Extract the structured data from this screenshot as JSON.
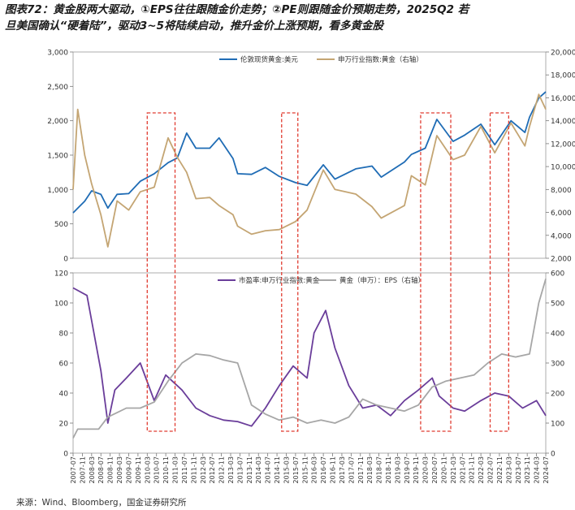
{
  "title_line1": "图表72：黄金股两大驱动，①EPS往往跟随金价走势；②PE则跟随金价预期走势，2025Q2 若",
  "title_line2": "旦美国确认“硬着陆”，驱动3~5将陆续启动，推升金价上涨预期，看多黄金股",
  "source": "来源：Wind、Bloomberg，国金证券研究所",
  "colors": {
    "gold_price": "#1f6cb5",
    "index": "#c4a573",
    "pe": "#6a3d9a",
    "eps": "#a6a6a6",
    "highlight": "#e03c31"
  },
  "chart_data": [
    {
      "type": "line",
      "x_range": [
        "2007-07",
        "2024-07"
      ],
      "ylim": [
        0,
        3000
      ],
      "ylim_right": [
        2000,
        20000
      ],
      "left_ticks": [
        "0",
        "500",
        "1,000",
        "1,500",
        "2,000",
        "2,500",
        "3,000"
      ],
      "right_ticks": [
        "2,000",
        "4,000",
        "6,000",
        "8,000",
        "10,000",
        "12,000",
        "14,000",
        "16,000",
        "18,000",
        "20,000"
      ],
      "series": [
        {
          "name": "伦敦现货黄金:美元",
          "axis": "left",
          "x": [
            "2007-07",
            "2007-12",
            "2008-03",
            "2008-07",
            "2008-10",
            "2009-02",
            "2009-07",
            "2009-12",
            "2010-06",
            "2010-12",
            "2011-04",
            "2011-08",
            "2011-12",
            "2012-06",
            "2012-10",
            "2013-04",
            "2013-06",
            "2013-12",
            "2014-06",
            "2014-12",
            "2015-07",
            "2015-12",
            "2016-07",
            "2016-12",
            "2017-09",
            "2018-04",
            "2018-08",
            "2019-06",
            "2019-09",
            "2020-03",
            "2020-08",
            "2021-03",
            "2021-08",
            "2022-03",
            "2022-09",
            "2023-04",
            "2023-10",
            "2023-12",
            "2024-04",
            "2024-07"
          ],
          "values": [
            660,
            830,
            980,
            930,
            730,
            930,
            940,
            1120,
            1230,
            1390,
            1460,
            1820,
            1600,
            1600,
            1750,
            1450,
            1230,
            1220,
            1320,
            1190,
            1100,
            1060,
            1360,
            1150,
            1300,
            1340,
            1180,
            1400,
            1510,
            1600,
            2020,
            1700,
            1790,
            1950,
            1650,
            2000,
            1830,
            2050,
            2330,
            2420
          ]
        },
        {
          "name": "申万行业指数:黄金（右轴）",
          "axis": "right",
          "x": [
            "2007-07",
            "2007-09",
            "2007-12",
            "2008-03",
            "2008-07",
            "2008-10",
            "2009-02",
            "2009-07",
            "2009-12",
            "2010-06",
            "2010-12",
            "2011-04",
            "2011-08",
            "2011-12",
            "2012-06",
            "2012-10",
            "2013-04",
            "2013-06",
            "2013-12",
            "2014-06",
            "2014-12",
            "2015-07",
            "2015-12",
            "2016-07",
            "2016-12",
            "2017-09",
            "2018-04",
            "2018-08",
            "2019-06",
            "2019-09",
            "2020-03",
            "2020-08",
            "2021-03",
            "2021-08",
            "2022-03",
            "2022-09",
            "2023-04",
            "2023-10",
            "2023-12",
            "2024-04",
            "2024-07"
          ],
          "values": [
            8000,
            15000,
            11000,
            8500,
            5800,
            3000,
            7000,
            6200,
            7800,
            8200,
            12500,
            10800,
            9500,
            7200,
            7300,
            6600,
            5800,
            4800,
            4100,
            4400,
            4500,
            5200,
            6200,
            9700,
            8000,
            7600,
            6500,
            5500,
            6600,
            9200,
            8400,
            12700,
            10600,
            11000,
            13500,
            11200,
            13800,
            11800,
            13500,
            16300,
            15000
          ]
        }
      ]
    },
    {
      "type": "line",
      "x_range": [
        "2007-07",
        "2024-07"
      ],
      "ylim": [
        0,
        120
      ],
      "ylim_right": [
        0,
        600
      ],
      "left_ticks": [
        "0",
        "20",
        "40",
        "60",
        "80",
        "100",
        "120"
      ],
      "right_ticks": [
        "0",
        "100",
        "200",
        "300",
        "400",
        "500",
        "600"
      ],
      "x_ticks": [
        "2007-07",
        "2007-11",
        "2008-03",
        "2008-07",
        "2008-11",
        "2009-03",
        "2009-07",
        "2009-11",
        "2010-03",
        "2010-07",
        "2010-11",
        "2011-03",
        "2011-07",
        "2011-11",
        "2012-03",
        "2012-07",
        "2012-11",
        "2013-03",
        "2013-07",
        "2013-11",
        "2014-03",
        "2014-07",
        "2014-11",
        "2015-03",
        "2015-07",
        "2015-11",
        "2016-03",
        "2016-07",
        "2016-11",
        "2017-03",
        "2017-07",
        "2017-11",
        "2018-03",
        "2018-07",
        "2018-11",
        "2019-03",
        "2019-07",
        "2019-11",
        "2020-03",
        "2020-07",
        "2020-11",
        "2021-03",
        "2021-07",
        "2021-11",
        "2022-03",
        "2022-07",
        "2022-11",
        "2023-03",
        "2023-07",
        "2023-11",
        "2024-03",
        "2024-07"
      ],
      "series": [
        {
          "name": "市盈率:申万行业指数:黄金",
          "axis": "left",
          "x": [
            "2007-07",
            "2008-01",
            "2008-07",
            "2008-10",
            "2009-01",
            "2009-06",
            "2009-12",
            "2010-06",
            "2010-11",
            "2011-06",
            "2011-12",
            "2012-06",
            "2012-12",
            "2013-06",
            "2013-12",
            "2014-06",
            "2014-12",
            "2015-06",
            "2015-12",
            "2016-03",
            "2016-08",
            "2016-12",
            "2017-06",
            "2017-12",
            "2018-06",
            "2018-12",
            "2019-06",
            "2019-12",
            "2020-06",
            "2020-09",
            "2021-03",
            "2021-08",
            "2022-03",
            "2022-09",
            "2023-03",
            "2023-09",
            "2024-03",
            "2024-07"
          ],
          "values": [
            110,
            105,
            55,
            20,
            42,
            50,
            60,
            35,
            52,
            42,
            30,
            25,
            22,
            21,
            18,
            30,
            45,
            58,
            50,
            80,
            95,
            70,
            45,
            30,
            32,
            25,
            35,
            42,
            50,
            38,
            30,
            28,
            35,
            40,
            38,
            30,
            35,
            25
          ]
        },
        {
          "name": "黄金（申万）：EPS（右轴）",
          "axis": "right",
          "x": [
            "2007-07",
            "2007-09",
            "2008-06",
            "2008-10",
            "2009-06",
            "2009-12",
            "2010-06",
            "2010-12",
            "2011-06",
            "2011-12",
            "2012-06",
            "2012-12",
            "2013-06",
            "2013-12",
            "2014-06",
            "2014-12",
            "2015-06",
            "2015-12",
            "2016-06",
            "2016-12",
            "2017-06",
            "2017-12",
            "2018-06",
            "2018-12",
            "2019-06",
            "2019-12",
            "2020-06",
            "2020-12",
            "2021-06",
            "2021-12",
            "2022-06",
            "2022-12",
            "2023-06",
            "2023-12",
            "2024-04",
            "2024-07"
          ],
          "values": [
            50,
            80,
            80,
            120,
            150,
            150,
            170,
            240,
            300,
            330,
            325,
            310,
            300,
            160,
            130,
            110,
            120,
            100,
            110,
            100,
            120,
            180,
            160,
            150,
            140,
            160,
            220,
            240,
            250,
            260,
            300,
            330,
            320,
            330,
            500,
            580
          ]
        }
      ]
    }
  ]
}
